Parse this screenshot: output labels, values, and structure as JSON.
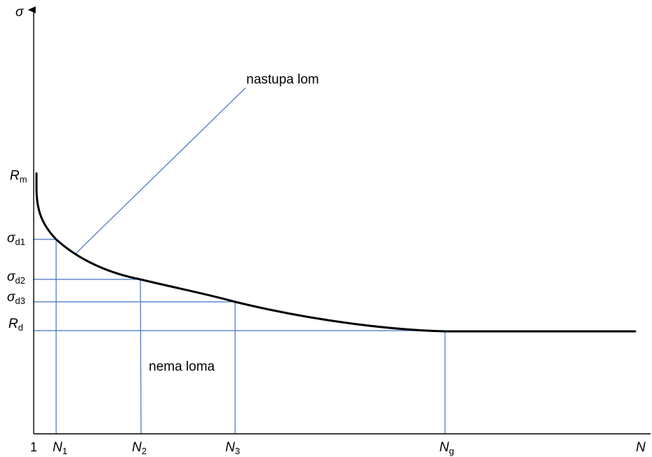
{
  "axes": {
    "y_label": "σ",
    "x_label": "N",
    "origin_label": "1"
  },
  "y_ticks": [
    {
      "main": "R",
      "sub": "m"
    },
    {
      "main": "σ",
      "sub": "d1"
    },
    {
      "main": "σ",
      "sub": "d2"
    },
    {
      "main": "σ",
      "sub": "d3"
    },
    {
      "main": "R",
      "sub": "d"
    }
  ],
  "x_ticks": [
    {
      "main": "N",
      "sub": "1"
    },
    {
      "main": "N",
      "sub": "2"
    },
    {
      "main": "N",
      "sub": "3"
    },
    {
      "main": "N",
      "sub": "g"
    }
  ],
  "annotations": {
    "fracture": "nastupa lom",
    "no_fracture": "nema loma"
  },
  "colors": {
    "curve": "#000000",
    "guides": "#4472c4",
    "axes": "#000000"
  }
}
